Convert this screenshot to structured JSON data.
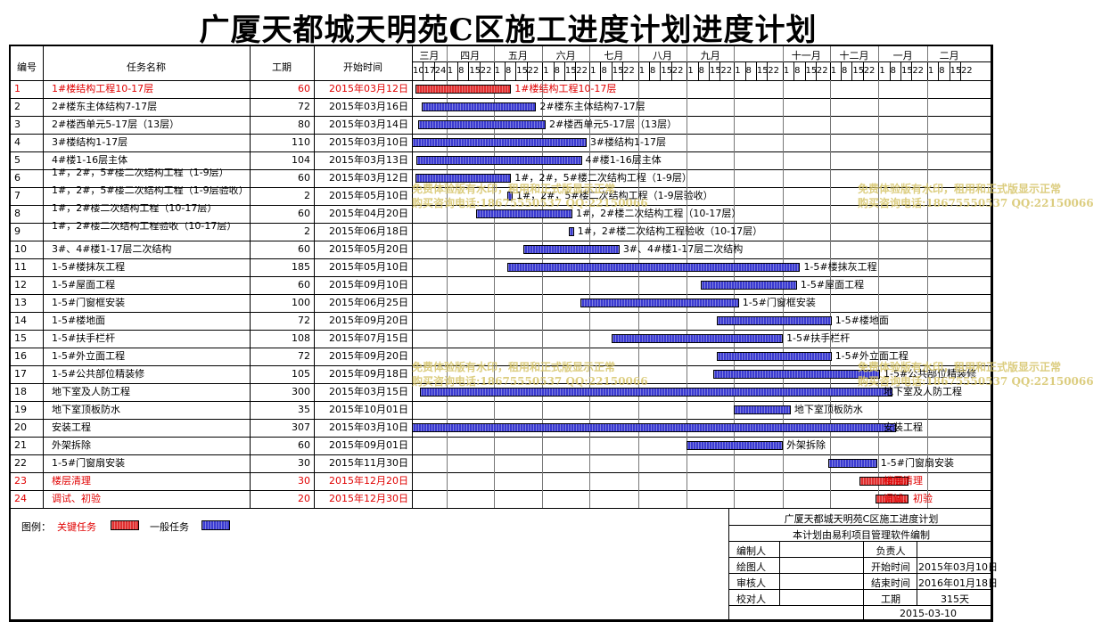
{
  "title": "广厦天都城天明苑C区施工进度计划进度计划",
  "table_headers": {
    "id": "编号",
    "name": "任务名称",
    "duration": "工期",
    "start": "开始时间"
  },
  "colors": {
    "critical": "#e03030",
    "general": "#3a3ad0",
    "critical_text": "#e00000",
    "watermark": "#d6c56a"
  },
  "months": [
    "三月",
    "四月",
    "五月",
    "六月",
    "七月",
    "八月",
    "九月",
    "十一月",
    "十二月",
    "一月",
    "二月"
  ],
  "week_ticks": [
    "10",
    "17",
    "24",
    "1",
    "8",
    "15",
    "22",
    "1",
    "8",
    "15",
    "22",
    "1",
    "8",
    "15",
    "22",
    "1",
    "8",
    "15",
    "22",
    "1",
    "8",
    "15",
    "22",
    "1",
    "8",
    "15",
    "22",
    "1",
    "8",
    "15",
    "22",
    "1",
    "8",
    "15",
    "22",
    "1",
    "8",
    "15",
    "22",
    "1",
    "8",
    "15",
    "22",
    "1",
    "8",
    "15",
    "22",
    "1"
  ],
  "chart_data": {
    "type": "gantt",
    "title": "广厦天都城天明苑C区施工进度计划进度计划",
    "x_unit": "days",
    "x_range": [
      "2015-03-10",
      "2016-03-02"
    ],
    "tasks": [
      {
        "id": "1",
        "name": "1#楼结构工程10-17层",
        "duration": "60",
        "start": "2015年03月12日",
        "label": "1#楼结构工程10-17层",
        "critical": true,
        "d0": 2,
        "dur": 60
      },
      {
        "id": "2",
        "name": "2#楼东主体结构7-17层",
        "duration": "72",
        "start": "2015年03月16日",
        "label": "2#楼东主体结构7-17层",
        "critical": false,
        "d0": 6,
        "dur": 72
      },
      {
        "id": "3",
        "name": "2#楼西单元5-17层（13层）",
        "duration": "80",
        "start": "2015年03月14日",
        "label": "2#楼西单元5-17层（13层）",
        "critical": false,
        "d0": 4,
        "dur": 80
      },
      {
        "id": "4",
        "name": "3#楼结构1-17层",
        "duration": "110",
        "start": "2015年03月10日",
        "label": "3#楼结构1-17层",
        "critical": false,
        "d0": 0,
        "dur": 110
      },
      {
        "id": "5",
        "name": "4#楼1-16层主体",
        "duration": "104",
        "start": "2015年03月13日",
        "label": "4#楼1-16层主体",
        "critical": false,
        "d0": 3,
        "dur": 104
      },
      {
        "id": "6",
        "name": "1#，2#，5#楼二次结构工程（1-9层）",
        "duration": "60",
        "start": "2015年03月12日",
        "label": "1#，2#，5#楼二次结构工程（1-9层）",
        "critical": false,
        "d0": 2,
        "dur": 60
      },
      {
        "id": "7",
        "name": "1#，2#，5#楼二次结构工程（1-9层验收）",
        "duration": "2",
        "start": "2015年05月10日",
        "label": "1#，2#，5#楼二次结构工程（1-9层验收）",
        "critical": false,
        "d0": 61,
        "dur": 2
      },
      {
        "id": "8",
        "name": "1#，2#楼二次结构工程（10-17层）",
        "duration": "60",
        "start": "2015年04月20日",
        "label": "1#，2#楼二次结构工程（10-17层）",
        "critical": false,
        "d0": 41,
        "dur": 60
      },
      {
        "id": "9",
        "name": "1#，2#楼二次结构工程验收（10-17层）",
        "duration": "2",
        "start": "2015年06月18日",
        "label": "1#，2#楼二次结构工程验收（10-17层）",
        "critical": false,
        "d0": 100,
        "dur": 2
      },
      {
        "id": "10",
        "name": "3#、4#楼1-17层二次结构",
        "duration": "60",
        "start": "2015年05月20日",
        "label": "3#、4#楼1-17层二次结构",
        "critical": false,
        "d0": 71,
        "dur": 60
      },
      {
        "id": "11",
        "name": "1-5#楼抹灰工程",
        "duration": "185",
        "start": "2015年05月10日",
        "label": "1-5#楼抹灰工程",
        "critical": false,
        "d0": 61,
        "dur": 185
      },
      {
        "id": "12",
        "name": "1-5#屋面工程",
        "duration": "60",
        "start": "2015年09月10日",
        "label": "1-5#屋面工程",
        "critical": false,
        "d0": 184,
        "dur": 60
      },
      {
        "id": "13",
        "name": "1-5#门窗框安装",
        "duration": "100",
        "start": "2015年06月25日",
        "label": "1-5#门窗框安装",
        "critical": false,
        "d0": 107,
        "dur": 100
      },
      {
        "id": "14",
        "name": "1-5#楼地面",
        "duration": "72",
        "start": "2015年09月20日",
        "label": "1-5#楼地面",
        "critical": false,
        "d0": 194,
        "dur": 72
      },
      {
        "id": "15",
        "name": "1-5#扶手栏杆",
        "duration": "108",
        "start": "2015年07月15日",
        "label": "1-5#扶手栏杆",
        "critical": false,
        "d0": 127,
        "dur": 108
      },
      {
        "id": "16",
        "name": "1-5#外立面工程",
        "duration": "72",
        "start": "2015年09月20日",
        "label": "1-5#外立面工程",
        "critical": false,
        "d0": 194,
        "dur": 72
      },
      {
        "id": "17",
        "name": "1-5#公共部位精装修",
        "duration": "105",
        "start": "2015年09月18日",
        "label": "1-5#公共部位精装修",
        "critical": false,
        "d0": 192,
        "dur": 105
      },
      {
        "id": "18",
        "name": "地下室及人防工程",
        "duration": "300",
        "start": "2015年03月15日",
        "label": "地下室及人防工程",
        "critical": false,
        "d0": 5,
        "dur": 300
      },
      {
        "id": "19",
        "name": "地下室顶板防水",
        "duration": "35",
        "start": "2015年10月01日",
        "label": "地下室顶板防水",
        "critical": false,
        "d0": 205,
        "dur": 35
      },
      {
        "id": "20",
        "name": "安装工程",
        "duration": "307",
        "start": "2015年03月10日",
        "label": "安装工程",
        "critical": false,
        "d0": 0,
        "dur": 307
      },
      {
        "id": "21",
        "name": "外架拆除",
        "duration": "60",
        "start": "2015年09月01日",
        "label": "外架拆除",
        "critical": false,
        "d0": 175,
        "dur": 60
      },
      {
        "id": "22",
        "name": "1-5#门窗扇安装",
        "duration": "30",
        "start": "2015年11月30日",
        "label": "1-5#门窗扇安装",
        "critical": false,
        "d0": 265,
        "dur": 30
      },
      {
        "id": "23",
        "name": "楼层清理",
        "duration": "30",
        "start": "2015年12月20日",
        "label": "楼层清理",
        "critical": true,
        "d0": 285,
        "dur": 30
      },
      {
        "id": "24",
        "name": "调试、初验",
        "duration": "20",
        "start": "2015年12月30日",
        "label": "调试、初验",
        "critical": true,
        "d0": 295,
        "dur": 20
      }
    ]
  },
  "legend": {
    "label": "图例：",
    "critical": "关键任务",
    "general": "一般任务"
  },
  "info": {
    "title": "广厦天都城天明苑C区施工进度计划",
    "subtitle": "本计划由易利项目管理软件编制",
    "rows": [
      {
        "k1": "编制人",
        "v1": "",
        "k2": "负责人",
        "v2": ""
      },
      {
        "k1": "绘图人",
        "v1": "",
        "k2": "开始时间",
        "v2": "2015年03月10日"
      },
      {
        "k1": "审核人",
        "v1": "",
        "k2": "结束时间",
        "v2": "2016年01月18日"
      },
      {
        "k1": "校对人",
        "v1": "",
        "k2": "工期",
        "v2": "315天"
      }
    ],
    "date": "2015-03-10"
  },
  "watermark": {
    "line1": "免费体验版有水印，租用和正式版显示正常",
    "line2": "购买咨询电话:18675550537 QQ:22150066"
  }
}
